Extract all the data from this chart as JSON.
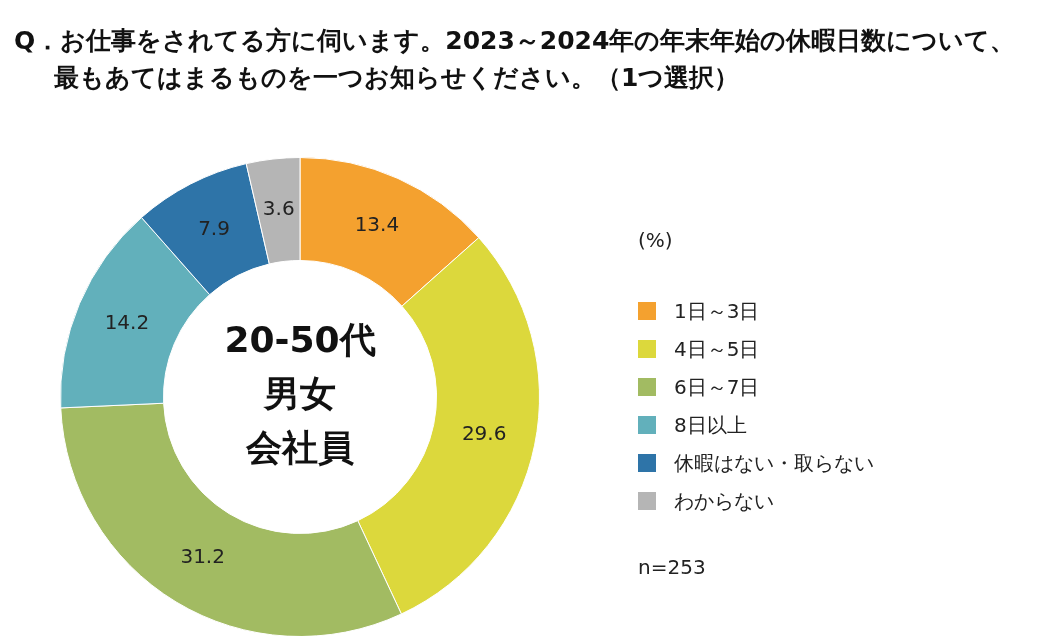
{
  "chart_data": {
    "type": "donut",
    "title": "Q．お仕事をされてる方に伺います。2023～2024年の年末年始の休暇日数について、最もあてはまるものを一つお知らせください。（1つ選択）",
    "categories": [
      "1日～3日",
      "4日～5日",
      "6日～7日",
      "8日以上",
      "休暇はない・取らない",
      "わからない"
    ],
    "values": [
      13.4,
      29.6,
      31.2,
      14.2,
      7.9,
      3.6
    ],
    "colors": [
      "#f4a12f",
      "#dcd83c",
      "#a2bb62",
      "#62b0bb",
      "#2e74a8",
      "#b5b5b5"
    ],
    "data_labels": true,
    "legend": "right",
    "legend_title": "(%)",
    "annotations": [
      "20-50代",
      "男女",
      "会社員",
      "n=253"
    ]
  }
}
